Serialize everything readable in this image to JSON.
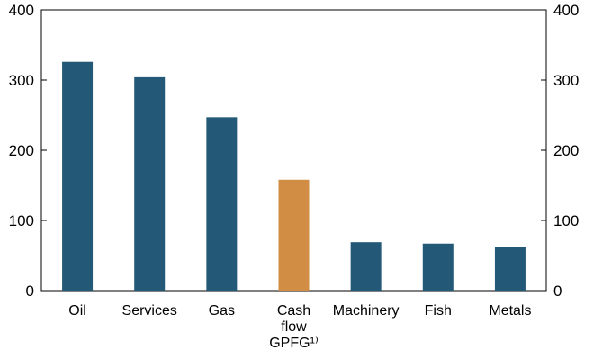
{
  "chart_data": {
    "type": "bar",
    "title": "",
    "xlabel": "",
    "ylabel": "",
    "categories": [
      [
        "Oil"
      ],
      [
        "Services"
      ],
      [
        "Gas"
      ],
      [
        "Cash",
        "flow",
        "GPFG¹⁾"
      ],
      [
        "Machinery"
      ],
      [
        "Fish"
      ],
      [
        "Metals"
      ]
    ],
    "values": [
      326,
      304,
      247,
      158,
      69,
      67,
      62
    ],
    "highlight_index": 3,
    "ylim": [
      0,
      400
    ],
    "yticks": [
      0,
      100,
      200,
      300,
      400
    ],
    "right_axis": true,
    "grid": false,
    "colors": {
      "bar": "#245877",
      "highlight": "#D08D43",
      "axis": "#000000"
    }
  }
}
